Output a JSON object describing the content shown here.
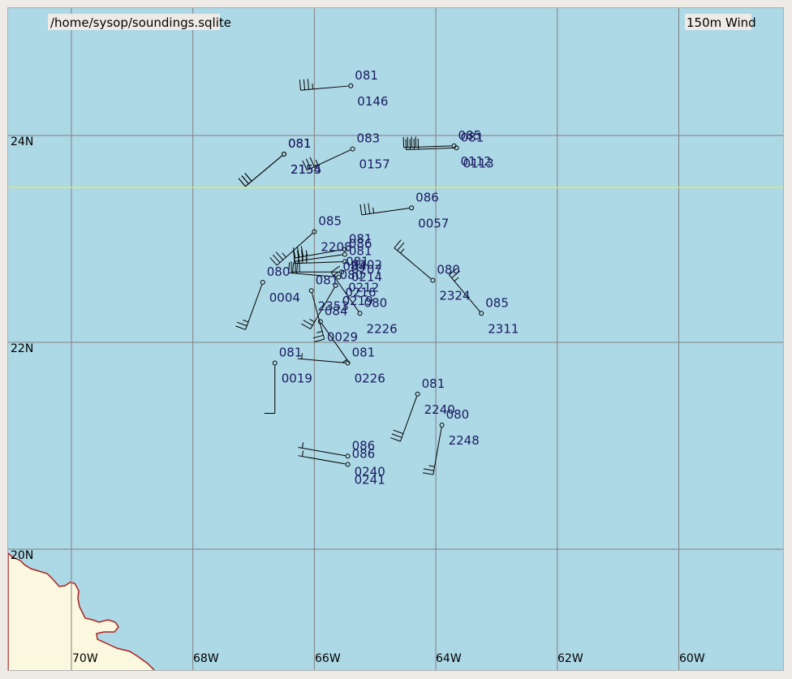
{
  "header": {
    "file_path": "/home/sysop/soundings.sqlite",
    "product": "150m Wind"
  },
  "colors": {
    "ocean": "#add8e6",
    "land": "#faf8de",
    "coast": "#b02020",
    "grid": "#808080",
    "text": "#1a1a60",
    "highlight_line": "#e0e870",
    "barb": "#000000"
  },
  "grid": {
    "lon_labels": [
      "70W",
      "68W",
      "66W",
      "64W",
      "62W",
      "60W"
    ],
    "lat_labels": [
      "24N",
      "22N",
      "20N"
    ]
  },
  "stations": [
    {
      "lon": -65.4,
      "lat": 24.48,
      "top": "081",
      "bottom": "0146",
      "dir": 265,
      "spd": 35
    },
    {
      "lon": -66.5,
      "lat": 23.82,
      "top": "081",
      "bottom": "2154",
      "dir": 230,
      "spd": 30
    },
    {
      "lon": -66.5,
      "lat": 23.82,
      "top": "081",
      "bottom": "2155",
      "dir": 230,
      "spd": 30
    },
    {
      "lon": -65.37,
      "lat": 23.87,
      "top": "083",
      "bottom": "0157",
      "dir": 245,
      "spd": 35
    },
    {
      "lon": -63.7,
      "lat": 23.9,
      "top": "085",
      "bottom": "0112",
      "dir": 268,
      "spd": 40
    },
    {
      "lon": -63.66,
      "lat": 23.88,
      "top": "081",
      "bottom": "0113",
      "dir": 268,
      "spd": 40
    },
    {
      "lon": -64.4,
      "lat": 23.3,
      "top": "086",
      "bottom": "0057",
      "dir": 262,
      "spd": 35
    },
    {
      "lon": -66.0,
      "lat": 23.07,
      "top": "085",
      "bottom": "2208",
      "dir": 228,
      "spd": 35
    },
    {
      "lon": -65.5,
      "lat": 22.9,
      "top": "081",
      "bottom": "0202",
      "dir": 260,
      "spd": 35
    },
    {
      "lon": -65.5,
      "lat": 22.85,
      "top": "086",
      "bottom": "0207",
      "dir": 262,
      "spd": 35
    },
    {
      "lon": -65.5,
      "lat": 22.78,
      "top": "081",
      "bottom": "0214",
      "dir": 268,
      "spd": 35
    },
    {
      "lon": -65.55,
      "lat": 22.68,
      "top": "081",
      "bottom": "0212",
      "dir": 270,
      "spd": 30
    },
    {
      "lon": -65.6,
      "lat": 22.63,
      "top": "084",
      "bottom": "0216",
      "dir": 275,
      "spd": 30
    },
    {
      "lon": -66.85,
      "lat": 22.58,
      "top": "080",
      "bottom": "0004",
      "dir": 200,
      "spd": 25
    },
    {
      "lon": -66.05,
      "lat": 22.5,
      "top": "081",
      "bottom": "2353",
      "dir": 165,
      "spd": 25
    },
    {
      "lon": -65.65,
      "lat": 22.55,
      "top": "080",
      "bottom": "0219",
      "dir": 210,
      "spd": 25
    },
    {
      "lon": -65.9,
      "lat": 22.2,
      "top": "084",
      "bottom": "0029",
      "dir": 145,
      "spd": 5
    },
    {
      "lon": -64.05,
      "lat": 22.6,
      "top": "080",
      "bottom": "2324",
      "dir": 310,
      "spd": 25
    },
    {
      "lon": -63.25,
      "lat": 22.28,
      "top": "085",
      "bottom": "2311",
      "dir": 320,
      "spd": 25
    },
    {
      "lon": -65.25,
      "lat": 22.28,
      "top": "080",
      "bottom": "2226",
      "dir": 325,
      "spd": 15
    },
    {
      "lon": -66.65,
      "lat": 21.8,
      "top": "081",
      "bottom": "0019",
      "dir": 180,
      "spd": 10
    },
    {
      "lon": -65.45,
      "lat": 21.8,
      "top": "081",
      "bottom": "0226",
      "dir": 275,
      "spd": 5
    },
    {
      "lon": -64.3,
      "lat": 21.5,
      "top": "081",
      "bottom": "2240",
      "dir": 200,
      "spd": 30
    },
    {
      "lon": -63.9,
      "lat": 21.2,
      "top": "080",
      "bottom": "2248",
      "dir": 190,
      "spd": 25
    },
    {
      "lon": -65.45,
      "lat": 20.9,
      "top": "086",
      "bottom": "0240",
      "dir": 280,
      "spd": 5
    },
    {
      "lon": -65.45,
      "lat": 20.82,
      "top": "086",
      "bottom": "0241",
      "dir": 280,
      "spd": 5
    }
  ]
}
